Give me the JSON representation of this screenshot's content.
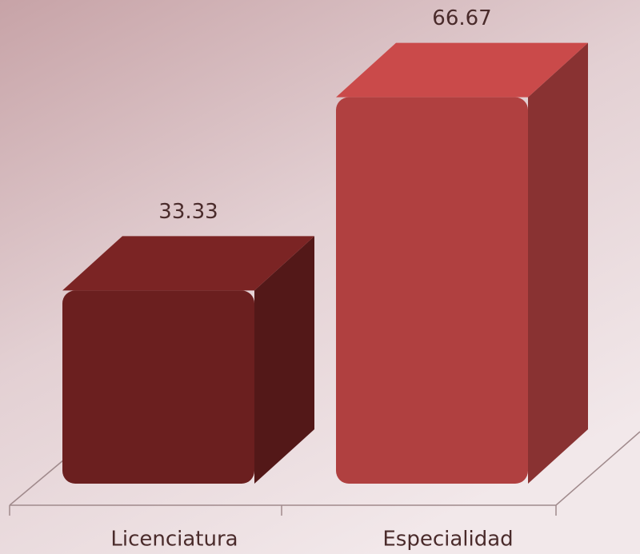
{
  "chart_data": {
    "type": "bar3d",
    "categories": [
      "Licenciatura",
      "Especialidad"
    ],
    "values": [
      33.33,
      66.67
    ],
    "colors": [
      "#6b1f1f",
      "#b04040"
    ]
  }
}
